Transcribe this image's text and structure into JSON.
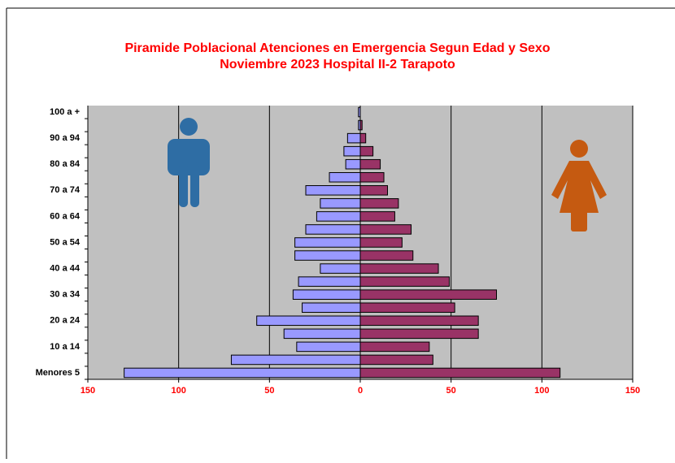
{
  "chart_data": {
    "type": "pyramid",
    "title": "Piramide Poblacional  Atenciones en Emergencia  Segun Edad y Sexo",
    "subtitle": "Noviembre 2023 Hospital II-2 Tarapoto",
    "categories": [
      "Menores 5",
      null,
      "10 a 14",
      null,
      "20 a 24",
      null,
      "30 a 34",
      null,
      "40 a 44",
      null,
      "50 a 54",
      null,
      "60 a 64",
      null,
      "70 a 74",
      null,
      "80 a 84",
      null,
      "90 a 94",
      null,
      "100 a +"
    ],
    "series": [
      {
        "color": "#9999ff",
        "values": [
          -130,
          -71,
          -35,
          -42,
          -57,
          -32,
          -37,
          -34,
          -22,
          -36,
          -36,
          -30,
          -24,
          -22,
          -30,
          -17,
          -8,
          -9,
          -7,
          -1,
          -1
        ]
      },
      {
        "color": "#993366",
        "values": [
          110,
          40,
          38,
          65,
          65,
          52,
          75,
          49,
          43,
          29,
          23,
          28,
          19,
          21,
          15,
          13,
          11,
          7,
          3,
          1,
          0
        ]
      }
    ],
    "xlim": [
      -150,
      150
    ],
    "xticks": [
      {
        "value": -150,
        "label": "150"
      },
      {
        "value": -100,
        "label": "100"
      },
      {
        "value": -50,
        "label": "50"
      },
      0,
      50,
      100,
      150
    ],
    "grid": true
  }
}
